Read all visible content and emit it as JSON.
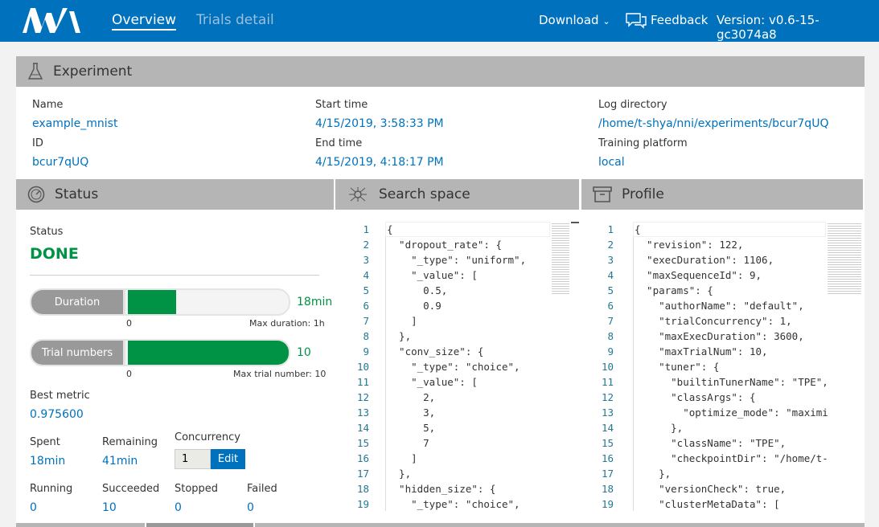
{
  "header": {
    "nav": [
      "Overview",
      "Trials detail"
    ],
    "download": "Download",
    "feedback": "Feedback",
    "version": "Version: v0.6-15-gc3074a8",
    "accent": "#0071bc"
  },
  "experiment": {
    "title": "Experiment",
    "fields": [
      {
        "label": "Name",
        "value": "example_mnist"
      },
      {
        "label": "Start time",
        "value": "4/15/2019, 3:58:33 PM"
      },
      {
        "label": "Log directory",
        "value": "/home/t-shya/nni/experiments/bcur7qUQ"
      },
      {
        "label": "ID",
        "value": "bcur7qUQ"
      },
      {
        "label": "End time",
        "value": "4/15/2019, 4:18:17 PM"
      },
      {
        "label": "Training platform",
        "value": "local"
      }
    ]
  },
  "status": {
    "title": "Status",
    "status_label": "Status",
    "status_value": "DONE",
    "status_color": "#009245",
    "duration": {
      "label": "Duration",
      "value": "18min",
      "min": "0",
      "max_label": "Max duration: 1h",
      "fraction": 0.3
    },
    "trials": {
      "label": "Trial numbers",
      "value": "10",
      "min": "0",
      "max_label": "Max trial number: 10",
      "fraction": 1.0
    },
    "best_metric_label": "Best metric",
    "best_metric": "0.975600",
    "spent_label": "Spent",
    "spent": "18min",
    "remaining_label": "Remaining",
    "remaining": "41min",
    "concurrency_label": "Concurrency",
    "concurrency": "1",
    "edit": "Edit",
    "counts": [
      {
        "label": "Running",
        "value": "0"
      },
      {
        "label": "Succeeded",
        "value": "10"
      },
      {
        "label": "Stopped",
        "value": "0"
      },
      {
        "label": "Failed",
        "value": "0"
      }
    ]
  },
  "search_space": {
    "title": "Search space",
    "lines": [
      "{",
      "  \"dropout_rate\": {",
      "    \"_type\": \"uniform\",",
      "    \"_value\": [",
      "      0.5,",
      "      0.9",
      "    ]",
      "  },",
      "  \"conv_size\": {",
      "    \"_type\": \"choice\",",
      "    \"_value\": [",
      "      2,",
      "      3,",
      "      5,",
      "      7",
      "    ]",
      "  },",
      "  \"hidden_size\": {",
      "    \"_type\": \"choice\","
    ]
  },
  "profile": {
    "title": "Profile",
    "lines": [
      "{",
      "  \"revision\": 122,",
      "  \"execDuration\": 1106,",
      "  \"maxSequenceId\": 9,",
      "  \"params\": {",
      "    \"authorName\": \"default\",",
      "    \"trialConcurrency\": 1,",
      "    \"maxExecDuration\": 3600,",
      "    \"maxTrialNum\": 10,",
      "    \"tuner\": {",
      "      \"builtinTunerName\": \"TPE\",",
      "      \"classArgs\": {",
      "        \"optimize_mode\": \"maximize\"",
      "      },",
      "      \"className\": \"TPE\",",
      "      \"checkpointDir\": \"/home/t-shya\"",
      "    },",
      "    \"versionCheck\": true,",
      "    \"clusterMetaData\": ["
    ]
  }
}
